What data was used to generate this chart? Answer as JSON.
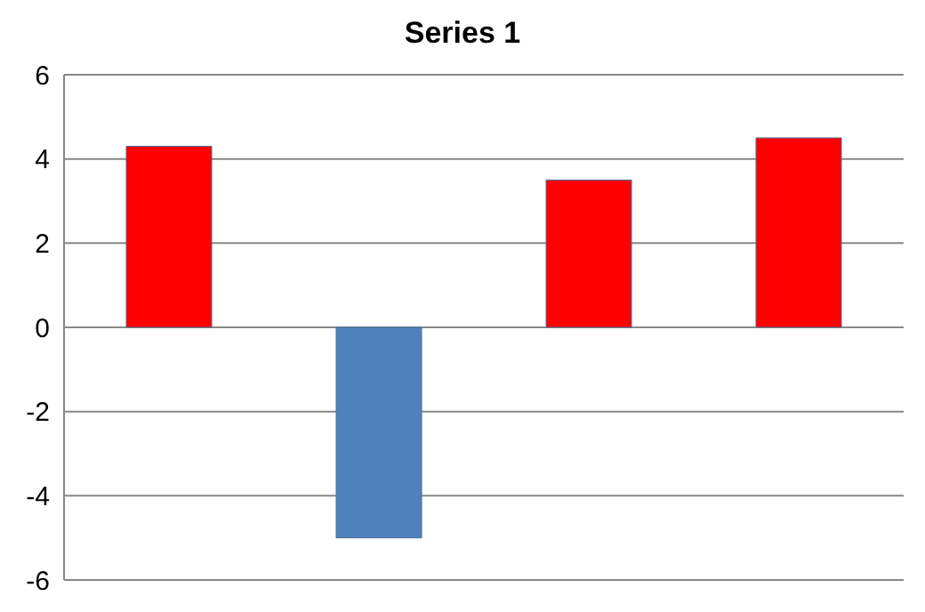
{
  "chart_data": {
    "type": "bar",
    "title": "Series 1",
    "categories": [
      null,
      null,
      null,
      null
    ],
    "values": [
      4.3,
      -5,
      3.5,
      4.5
    ],
    "colors": [
      "#ff0000",
      "#4f81bd",
      "#ff0000",
      "#ff0000"
    ],
    "ylim": [
      -6,
      6
    ],
    "yticks": [
      -6,
      -4,
      -2,
      0,
      2,
      4,
      6
    ],
    "grid": "y",
    "tick_labels": "y"
  }
}
